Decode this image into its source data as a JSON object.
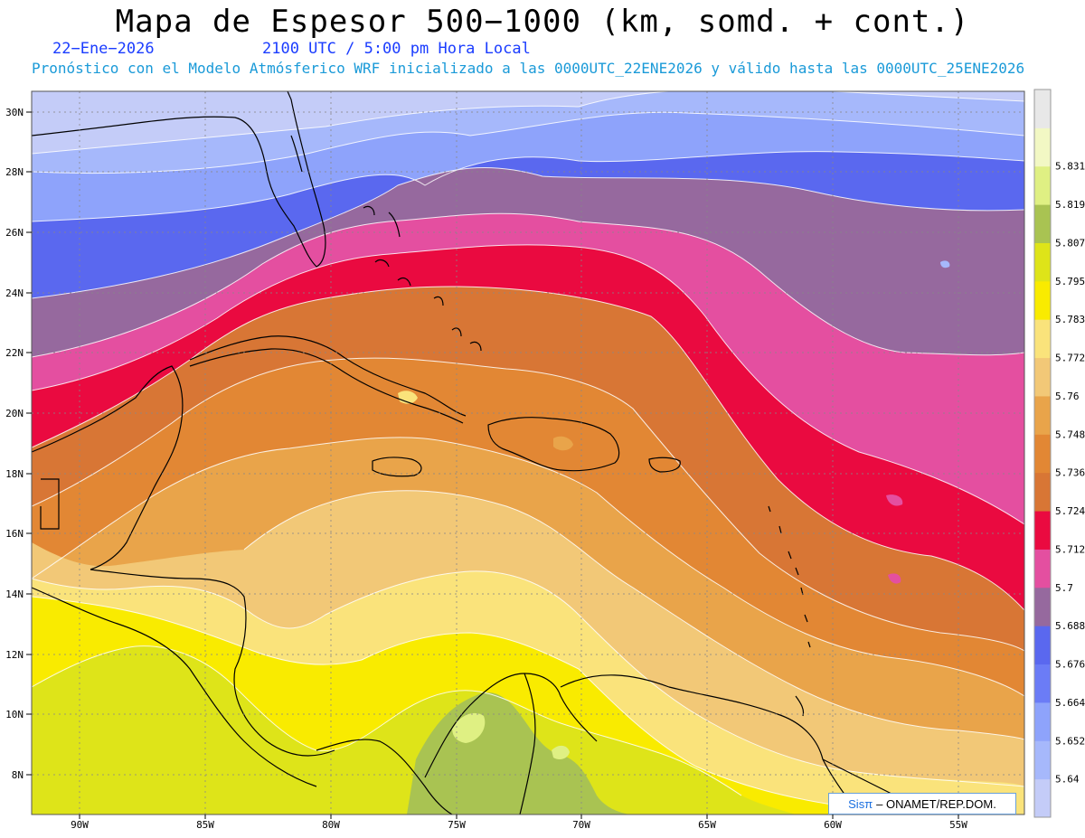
{
  "title": "Mapa de Espesor 500−1000 (km, somd. + cont.)",
  "date_label": "22−Ene−2026",
  "time_label": "2100 UTC / 5:00 pm Hora Local",
  "forecast_label": "Pronóstico con el Modelo Atmósferico WRF inicializado a las 0000UTC_22ENE2026 y válido hasta las  0000UTC_25ENE2026",
  "credit": {
    "sis": "Sisπ",
    "org": "– ONAMET/REP.DOM."
  },
  "lat_labels": [
    "30N",
    "28N",
    "26N",
    "24N",
    "22N",
    "20N",
    "18N",
    "16N",
    "14N",
    "12N",
    "10N",
    "8N"
  ],
  "lon_labels": [
    "90W",
    "85W",
    "80W",
    "75W",
    "70W",
    "65W",
    "60W",
    "55W"
  ],
  "colorbar": {
    "labels": [
      "5.64",
      "5.652",
      "5.664",
      "5.676",
      "5.688",
      "5.7",
      "5.712",
      "5.724",
      "5.736",
      "5.748",
      "5.76",
      "5.772",
      "5.783",
      "5.795",
      "5.807",
      "5.819",
      "5.831"
    ],
    "colors": [
      "#c4ccf8",
      "#a6b8fb",
      "#8ea3fb",
      "#6b7cf6",
      "#5a68ef",
      "#96699e",
      "#e44fa0",
      "#ea0a40",
      "#d87635",
      "#e28734",
      "#e9a44a",
      "#f2c877",
      "#fae37b",
      "#f9eb00",
      "#dee419",
      "#a9c352",
      "#dff083",
      "#f2f8c4",
      "#e8e8e8"
    ]
  },
  "colors": {
    "title_blue": "#1a3cff",
    "subtitle_blue": "#1a9ad8"
  }
}
